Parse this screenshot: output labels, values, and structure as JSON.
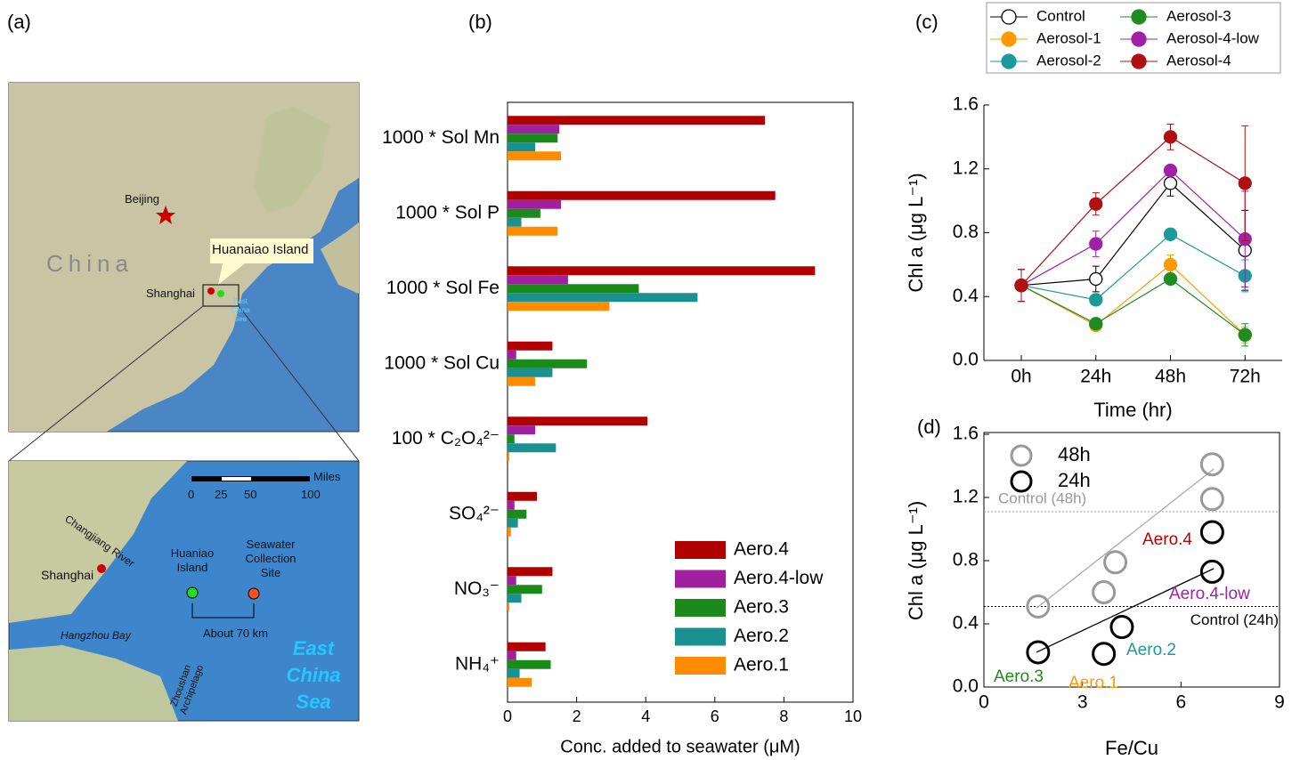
{
  "map": {
    "label": "(a)",
    "top": [
      "Beijing",
      "China",
      "Huanaiao Island",
      "Shanghai",
      "East China Sea"
    ],
    "inset": {
      "scale_unit": "Miles",
      "scale_ticks": [
        "0",
        "25",
        "50",
        "100"
      ],
      "places": [
        "Changjiang River",
        "Shanghai",
        "Huaniao Island",
        "Seawater Collection Site",
        "About 70 km",
        "Hangzhou Bay",
        "East China Sea",
        "Zhoushan Archipelago"
      ]
    }
  },
  "chart_data": [
    {
      "type": "hbar",
      "label": "(b)",
      "x_label": "Conc. added to seawater (μM)",
      "categories": [
        "1000 * Sol Mn",
        "1000 * Sol P",
        "1000 * Sol Fe",
        "1000 * Sol Cu",
        "100 * C₂O₄²⁻",
        "SO₄²⁻",
        "NO₃⁻",
        "NH₄⁺"
      ],
      "series": [
        {
          "name": "Aero.4",
          "color": "#b00000",
          "values": [
            7.45,
            7.75,
            8.9,
            1.3,
            4.05,
            0.85,
            1.3,
            1.1
          ]
        },
        {
          "name": "Aero.4-low",
          "color": "#a020a0",
          "values": [
            1.5,
            1.55,
            1.75,
            0.25,
            0.8,
            0.2,
            0.25,
            0.25
          ]
        },
        {
          "name": "Aero.3",
          "color": "#1a8a1a",
          "values": [
            1.45,
            0.95,
            3.8,
            2.3,
            0.2,
            0.55,
            1.0,
            1.25
          ]
        },
        {
          "name": "Aero.2",
          "color": "#1a9090",
          "values": [
            0.8,
            0.4,
            5.5,
            1.3,
            1.4,
            0.3,
            0.4,
            0.35
          ]
        },
        {
          "name": "Aero.1",
          "color": "#ff8c00",
          "values": [
            1.55,
            1.45,
            2.95,
            0.8,
            0.05,
            0.1,
            0.05,
            0.7
          ]
        }
      ],
      "xlim": [
        0,
        10
      ],
      "xticks": [
        0,
        2,
        4,
        6,
        8,
        10
      ],
      "legend": "lower right"
    },
    {
      "type": "line",
      "label": "(c)",
      "x_label": "Time (hr)",
      "y_label": "Chl a (μg L⁻¹)",
      "categories": [
        "0h",
        "24h",
        "48h",
        "72h"
      ],
      "series": [
        {
          "name": "Control",
          "color": "#000000",
          "open": true,
          "values": [
            0.47,
            0.51,
            1.11,
            0.69
          ],
          "errors": [
            0.1,
            0.08,
            0.08,
            0.25
          ]
        },
        {
          "name": "Aerosol-1",
          "color": "#ff9900",
          "values": [
            0.47,
            0.22,
            0.6,
            0.16
          ],
          "errors": [
            0.1,
            0.02,
            0.06,
            0.05
          ]
        },
        {
          "name": "Aerosol-2",
          "color": "#1a9a9a",
          "values": [
            0.47,
            0.38,
            0.79,
            0.53
          ],
          "errors": [
            0.1,
            0.02,
            0.02,
            0.1
          ]
        },
        {
          "name": "Aerosol-3",
          "color": "#1e8c1e",
          "values": [
            0.47,
            0.23,
            0.51,
            0.16
          ],
          "errors": [
            0.1,
            0.02,
            0.02,
            0.07
          ]
        },
        {
          "name": "Aerosol-4-low",
          "color": "#a020a8",
          "values": [
            0.47,
            0.73,
            1.19,
            0.76
          ],
          "errors": [
            0.1,
            0.08,
            0.03,
            0.3
          ]
        },
        {
          "name": "Aerosol-4",
          "color": "#b01010",
          "values": [
            0.47,
            0.98,
            1.4,
            1.11
          ],
          "errors": [
            0.1,
            0.07,
            0.08,
            0.36
          ]
        }
      ],
      "ylim": [
        0,
        1.6
      ],
      "yticks": [
        {
          "value": 0,
          "label": "0.0"
        },
        0.4,
        0.8,
        1.2,
        1.6
      ],
      "legend": "above"
    },
    {
      "type": "scatter",
      "label": "(d)",
      "x_label": "Fe/Cu",
      "y_label": "Chl a (μg L⁻¹)",
      "series": [
        {
          "name": "48h",
          "color": "#999999",
          "x": [
            1.65,
            3.65,
            4.0,
            6.95,
            6.95
          ],
          "values": [
            0.51,
            0.6,
            0.79,
            1.19,
            1.41
          ]
        },
        {
          "name": "24h",
          "color": "#000000",
          "x": [
            1.65,
            3.65,
            4.2,
            6.95,
            6.95
          ],
          "values": [
            0.22,
            0.21,
            0.38,
            0.73,
            0.98
          ]
        }
      ],
      "fits": [
        {
          "color": "#aaaaaa",
          "x": [
            1.6,
            7.0
          ],
          "values": [
            0.5,
            1.38
          ]
        },
        {
          "color": "#000000",
          "x": [
            1.6,
            7.0
          ],
          "values": [
            0.22,
            0.75
          ]
        }
      ],
      "reference_lines": [
        {
          "value": 1.11,
          "label": "Control (48h)",
          "color": "#999999"
        },
        {
          "value": 0.51,
          "label": "Control (24h)",
          "color": "#000000"
        }
      ],
      "annotations": [
        {
          "text": "Aero.4",
          "color": "#c00000"
        },
        {
          "text": "Aero.4-low",
          "color": "#a020a8"
        },
        {
          "text": "Aero.2",
          "color": "#1a9a9a"
        },
        {
          "text": "Aero.1",
          "color": "#ff9900"
        },
        {
          "text": "Aero.3",
          "color": "#1e8c1e"
        }
      ],
      "xlim": [
        0,
        9
      ],
      "xticks": [
        0,
        3,
        6,
        9
      ],
      "ylim": [
        0,
        1.6
      ],
      "yticks": [
        {
          "value": 0,
          "label": "0.0"
        },
        0.4,
        0.8,
        1.2,
        1.6
      ],
      "legend": "upper left"
    }
  ]
}
